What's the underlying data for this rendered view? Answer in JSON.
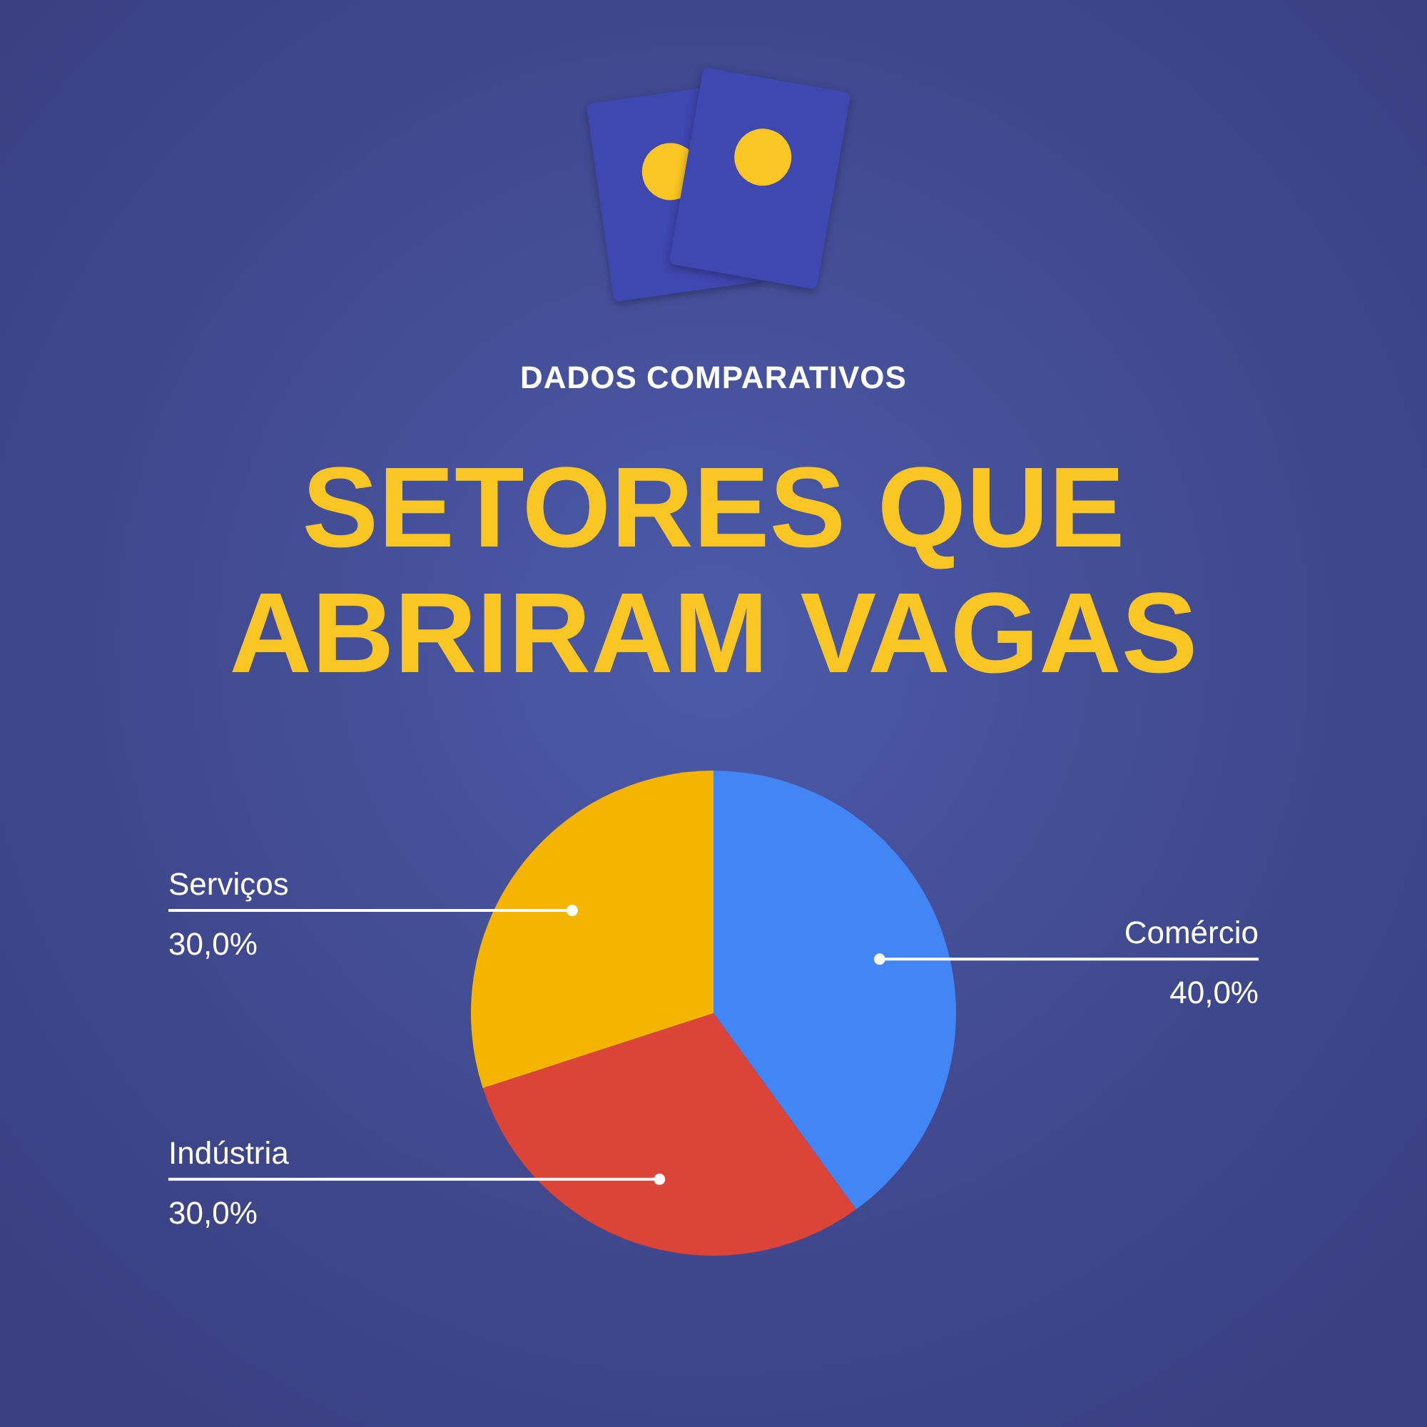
{
  "chart_data": {
    "type": "pie",
    "title": "SETORES QUE ABRIRAM VAGAS",
    "subtitle": "DADOS COMPARATIVOS",
    "categories": [
      "Comércio",
      "Indústria",
      "Serviços"
    ],
    "values": [
      40,
      30,
      30
    ],
    "colors": [
      "#4285f4",
      "#db4437",
      "#f4b400"
    ],
    "value_labels": [
      "40,0%",
      "30,0%",
      "30,0%"
    ]
  }
}
